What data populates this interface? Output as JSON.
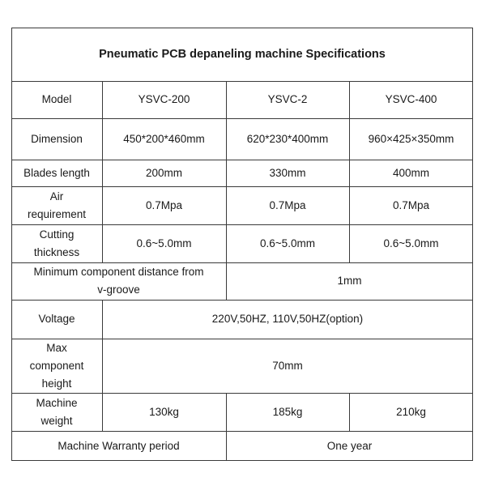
{
  "title": "Pneumatic PCB depaneling machine Specifications",
  "model": {
    "label": "Model",
    "values": [
      "YSVC-200",
      "YSVC-2",
      "YSVC-400"
    ]
  },
  "dimension": {
    "label": "Dimension",
    "values": [
      "450*200*460mm",
      "620*230*400mm",
      "960×425×350mm"
    ]
  },
  "blades_length": {
    "label": "Blades length",
    "values": [
      "200mm",
      "330mm",
      "400mm"
    ]
  },
  "air_requirement": {
    "label_lines": [
      "Air",
      "requirement"
    ],
    "values": [
      "0.7Mpa",
      "0.7Mpa",
      "0.7Mpa"
    ]
  },
  "cutting_thickness": {
    "label_lines": [
      "Cutting",
      "thickness"
    ],
    "values": [
      "0.6~5.0mm",
      "0.6~5.0mm",
      "0.6~5.0mm"
    ]
  },
  "min_component_distance": {
    "label_lines": [
      "Minimum component distance from",
      "v-groove"
    ],
    "value": "1mm"
  },
  "voltage": {
    "label": "Voltage",
    "value": "220V,50HZ, 110V,50HZ(option)"
  },
  "max_component_height": {
    "label_lines": [
      "Max",
      "component",
      "height"
    ],
    "value": "70mm"
  },
  "machine_weight": {
    "label_lines": [
      "Machine",
      "weight"
    ],
    "values": [
      "130kg",
      "185kg",
      "210kg"
    ]
  },
  "warranty": {
    "label": "Machine Warranty period",
    "value": "One year"
  }
}
